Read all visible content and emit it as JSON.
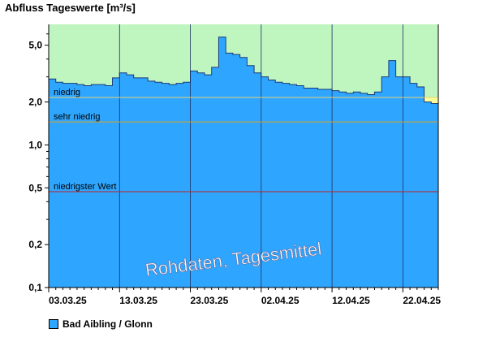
{
  "chart_data": {
    "type": "area",
    "title": "Abfluss Tageswerte [m³/s]",
    "y_scale": "log",
    "ylim": [
      0.1,
      7
    ],
    "y_ticks": [
      {
        "value": 5,
        "label": "5,0"
      },
      {
        "value": 2,
        "label": "2,0"
      },
      {
        "value": 1,
        "label": "1,0"
      },
      {
        "value": 0.5,
        "label": "0,5"
      },
      {
        "value": 0.2,
        "label": "0,2"
      },
      {
        "value": 0.1,
        "label": "0,1"
      }
    ],
    "x_ticks": [
      "03.03.25",
      "13.03.25",
      "23.03.25",
      "02.04.25",
      "12.04.25",
      "22.04.25"
    ],
    "x_start": "03.03.25",
    "thresholds": [
      {
        "label": "niedrig",
        "value": 2.15,
        "color": "#e8d070"
      },
      {
        "label": "sehr niedrig",
        "value": 1.45,
        "color": "#e0a020"
      },
      {
        "label": "niedrigster Wert",
        "value": 0.47,
        "color": "#c02020"
      }
    ],
    "band_colors": {
      "above_niedrig": "#bff5bf",
      "niedrig_band": "#ffff99",
      "sehr_niedrig_band": "#ffdd99",
      "below_lowest": "#e87878"
    },
    "watermark": "Rohdaten, Tagesmittel",
    "grid": true,
    "series": [
      {
        "name": "Bad Aibling / Glonn",
        "color": "#2ea6ff",
        "values": [
          2.9,
          2.75,
          2.7,
          2.7,
          2.65,
          2.6,
          2.65,
          2.65,
          2.6,
          2.95,
          3.2,
          3.1,
          2.95,
          2.95,
          2.8,
          2.75,
          2.7,
          2.65,
          2.7,
          2.75,
          3.3,
          3.2,
          3.1,
          3.5,
          5.7,
          4.4,
          4.3,
          4.1,
          3.6,
          3.2,
          3.0,
          2.85,
          2.75,
          2.7,
          2.65,
          2.6,
          2.5,
          2.5,
          2.45,
          2.45,
          2.4,
          2.35,
          2.3,
          2.35,
          2.3,
          2.25,
          2.35,
          3.0,
          3.9,
          3.0,
          3.0,
          2.7,
          2.55,
          2.0,
          1.95
        ]
      }
    ]
  },
  "legend": {
    "label": "Bad Aibling / Glonn",
    "color": "#2ea6ff"
  }
}
